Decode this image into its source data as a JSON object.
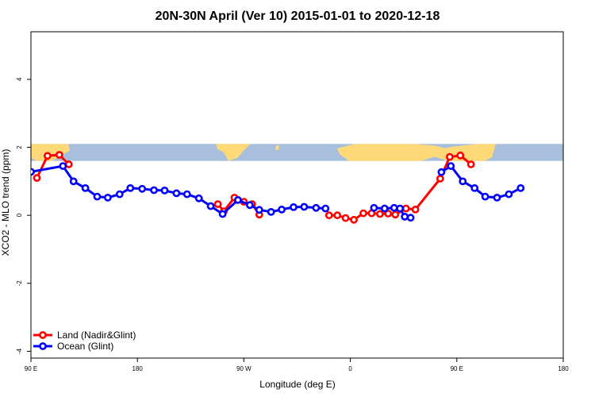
{
  "chart_data": {
    "type": "line",
    "title": "20N-30N April (Ver 10)   2015-01-01 to 2020-12-18",
    "xlabel": "Longitude (deg E)",
    "ylabel": "XCO2 - MLO trend (ppm)",
    "xlim": [
      90,
      540
    ],
    "ylim": [
      -4.2,
      5.4
    ],
    "x_ticks": [
      {
        "value": 90,
        "label": "90 E"
      },
      {
        "value": 180,
        "label": "180"
      },
      {
        "value": 270,
        "label": "90 W"
      },
      {
        "value": 360,
        "label": "0"
      },
      {
        "value": 450,
        "label": "90 E"
      },
      {
        "value": 540,
        "label": "180"
      }
    ],
    "y_ticks": [
      {
        "value": -4,
        "label": "-4"
      },
      {
        "value": -2,
        "label": "-2"
      },
      {
        "value": 0,
        "label": "0"
      },
      {
        "value": 2,
        "label": "2"
      },
      {
        "value": 4,
        "label": "4"
      }
    ],
    "map_band": {
      "y_from": 1.6,
      "y_to": 2.1,
      "land_color": "#ffd977",
      "ocean_color": "#a7bfdc"
    },
    "legend_position": "bottom-left",
    "series": [
      {
        "name": "Land (Nadir&Glint)",
        "color": "#ff0000",
        "segments": [
          [
            [
              95,
              1.1
            ],
            [
              104,
              1.75
            ],
            [
              114,
              1.78
            ],
            [
              122,
              1.5
            ]
          ],
          [
            [
              248,
              0.33
            ],
            [
              253,
              0.12
            ],
            [
              262,
              0.52
            ],
            [
              270,
              0.4
            ],
            [
              277,
              0.33
            ],
            [
              283,
              0.02
            ]
          ],
          [
            [
              342,
              0.0
            ],
            [
              349,
              0.0
            ],
            [
              356,
              -0.08
            ],
            [
              363,
              -0.13
            ],
            [
              371,
              0.06
            ],
            [
              378,
              0.06
            ],
            [
              385,
              0.04
            ],
            [
              392,
              0.05
            ],
            [
              398,
              0.02
            ],
            [
              407,
              0.2
            ],
            [
              415,
              0.17
            ],
            [
              436,
              1.08
            ],
            [
              444,
              1.72
            ],
            [
              453,
              1.76
            ],
            [
              462,
              1.5
            ]
          ]
        ]
      },
      {
        "name": "Ocean (Glint)",
        "color": "#0000ff",
        "segments": [
          [
            [
              90,
              1.28
            ],
            [
              117,
              1.45
            ],
            [
              126,
              1.0
            ],
            [
              136,
              0.8
            ],
            [
              146,
              0.55
            ],
            [
              155,
              0.52
            ],
            [
              165,
              0.62
            ],
            [
              174,
              0.8
            ],
            [
              184,
              0.78
            ],
            [
              194,
              0.74
            ],
            [
              203,
              0.73
            ],
            [
              213,
              0.65
            ],
            [
              222,
              0.62
            ],
            [
              232,
              0.5
            ],
            [
              242,
              0.27
            ],
            [
              252,
              0.04
            ],
            [
              265,
              0.45
            ],
            [
              275,
              0.3
            ],
            [
              283,
              0.16
            ],
            [
              293,
              0.1
            ],
            [
              302,
              0.17
            ],
            [
              312,
              0.24
            ],
            [
              321,
              0.25
            ],
            [
              331,
              0.22
            ],
            [
              339,
              0.2
            ]
          ],
          [
            [
              380,
              0.22
            ],
            [
              389,
              0.2
            ],
            [
              397,
              0.22
            ],
            [
              402,
              0.2
            ],
            [
              406,
              -0.04
            ],
            [
              411,
              -0.07
            ]
          ],
          [
            [
              437,
              1.27
            ],
            [
              445,
              1.45
            ],
            [
              455,
              1.0
            ],
            [
              465,
              0.8
            ],
            [
              474,
              0.55
            ],
            [
              484,
              0.52
            ],
            [
              494,
              0.62
            ],
            [
              504,
              0.8
            ]
          ]
        ]
      }
    ]
  }
}
